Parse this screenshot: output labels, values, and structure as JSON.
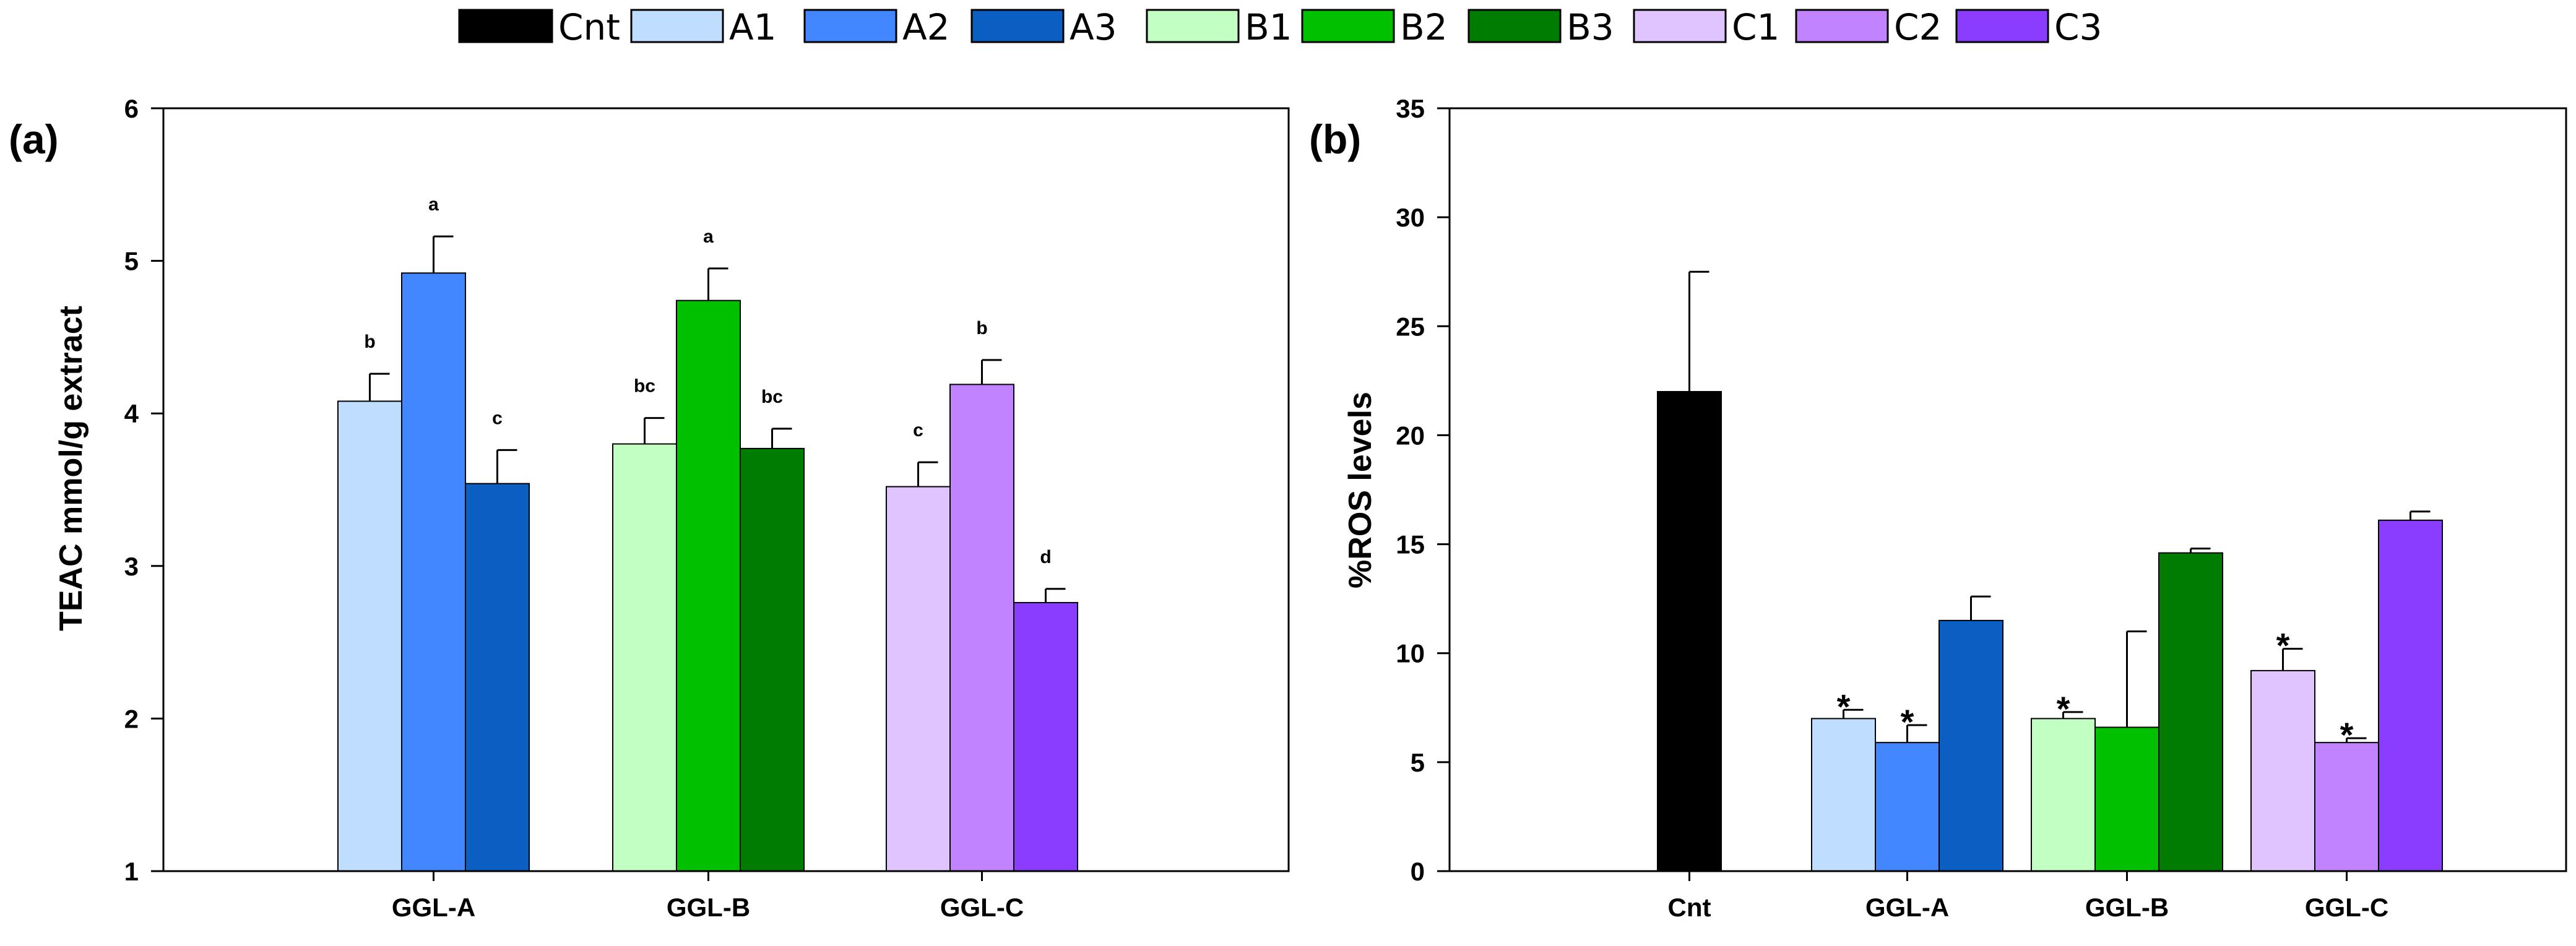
{
  "legend": {
    "items": [
      {
        "key": "Cnt",
        "label": "Cnt",
        "color": "#000000"
      },
      {
        "key": "A1",
        "label": "A1",
        "color": "#bfdeff"
      },
      {
        "key": "A2",
        "label": "A2",
        "color": "#4287ff"
      },
      {
        "key": "A3",
        "label": "A3",
        "color": "#0b5ec2"
      },
      {
        "key": "B1",
        "label": "B1",
        "color": "#c2ffc2"
      },
      {
        "key": "B2",
        "label": "B2",
        "color": "#00c000"
      },
      {
        "key": "B3",
        "label": "B3",
        "color": "#007d00"
      },
      {
        "key": "C1",
        "label": "C1",
        "color": "#dfc4ff"
      },
      {
        "key": "C2",
        "label": "C2",
        "color": "#c183ff"
      },
      {
        "key": "C3",
        "label": "C3",
        "color": "#8b3dff"
      }
    ]
  },
  "chart_data": [
    {
      "type": "bar",
      "panel_label": "(a)",
      "title": "",
      "xlabel": "",
      "ylabel": "TEAC mmol/g extract",
      "ylim": [
        1,
        6
      ],
      "yticks": [
        1,
        2,
        3,
        4,
        5,
        6
      ],
      "grid": false,
      "categories": [
        "GGL-A",
        "GGL-B",
        "GGL-C"
      ],
      "groups": [
        {
          "category": "GGL-A",
          "bars": [
            {
              "series": "A1",
              "value": 4.08,
              "error": 0.18,
              "annotation": "b"
            },
            {
              "series": "A2",
              "value": 4.92,
              "error": 0.24,
              "annotation": "a"
            },
            {
              "series": "A3",
              "value": 3.54,
              "error": 0.22,
              "annotation": "c"
            }
          ]
        },
        {
          "category": "GGL-B",
          "bars": [
            {
              "series": "B1",
              "value": 3.8,
              "error": 0.17,
              "annotation": "bc"
            },
            {
              "series": "B2",
              "value": 4.74,
              "error": 0.21,
              "annotation": "a"
            },
            {
              "series": "B3",
              "value": 3.77,
              "error": 0.13,
              "annotation": "bc"
            }
          ]
        },
        {
          "category": "GGL-C",
          "bars": [
            {
              "series": "C1",
              "value": 3.52,
              "error": 0.16,
              "annotation": "c"
            },
            {
              "series": "C2",
              "value": 4.19,
              "error": 0.16,
              "annotation": "b"
            },
            {
              "series": "C3",
              "value": 2.76,
              "error": 0.09,
              "annotation": "d"
            }
          ]
        }
      ]
    },
    {
      "type": "bar",
      "panel_label": "(b)",
      "title": "",
      "xlabel": "",
      "ylabel": "%ROS levels",
      "ylim": [
        0,
        35
      ],
      "yticks": [
        0,
        5,
        10,
        15,
        20,
        25,
        30,
        35
      ],
      "grid": false,
      "categories": [
        "Cnt",
        "GGL-A",
        "GGL-B",
        "GGL-C"
      ],
      "groups": [
        {
          "category": "Cnt",
          "bars": [
            {
              "series": "Cnt",
              "value": 22.0,
              "error": 5.5,
              "annotation": ""
            }
          ]
        },
        {
          "category": "GGL-A",
          "bars": [
            {
              "series": "A1",
              "value": 7.0,
              "error": 0.4,
              "annotation": "*"
            },
            {
              "series": "A2",
              "value": 5.9,
              "error": 0.8,
              "annotation": "*"
            },
            {
              "series": "A3",
              "value": 11.5,
              "error": 1.1,
              "annotation": ""
            }
          ]
        },
        {
          "category": "GGL-B",
          "bars": [
            {
              "series": "B1",
              "value": 7.0,
              "error": 0.3,
              "annotation": "*"
            },
            {
              "series": "B2",
              "value": 6.6,
              "error": 4.4,
              "annotation": ""
            },
            {
              "series": "B3",
              "value": 14.6,
              "error": 0.2,
              "annotation": ""
            }
          ]
        },
        {
          "category": "GGL-C",
          "bars": [
            {
              "series": "C1",
              "value": 9.2,
              "error": 1.0,
              "annotation": "*"
            },
            {
              "series": "C2",
              "value": 5.9,
              "error": 0.2,
              "annotation": "*"
            },
            {
              "series": "C3",
              "value": 16.1,
              "error": 0.4,
              "annotation": ""
            }
          ]
        }
      ]
    }
  ]
}
